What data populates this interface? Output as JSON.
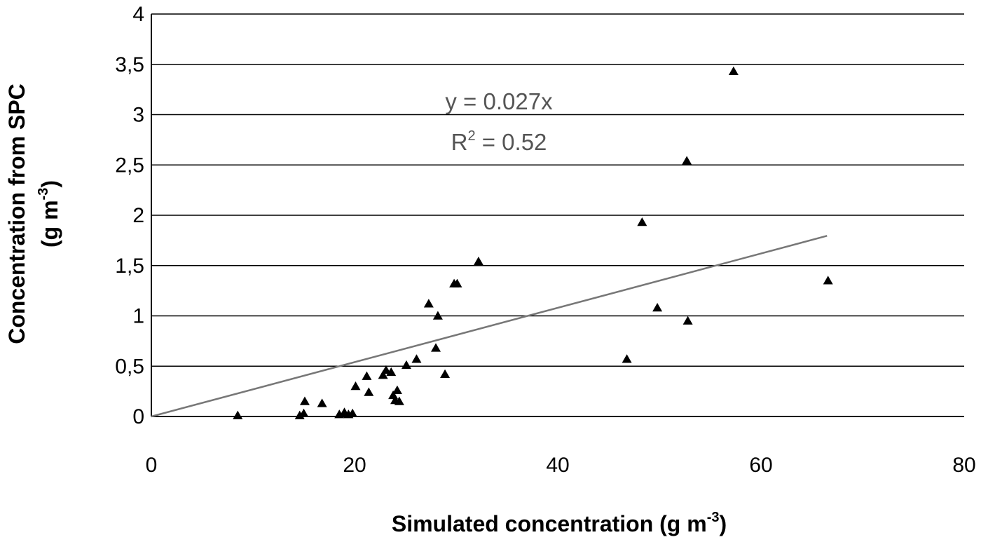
{
  "chart_data": {
    "type": "scatter",
    "x_axis": {
      "label_main": "Simulated concentration (g m",
      "label_exp": "-3",
      "label_close": ")",
      "range": [
        0,
        80
      ],
      "ticks": [
        "0",
        "20",
        "40",
        "60",
        "80"
      ]
    },
    "y_axis": {
      "label_line1": "Concentration from SPC",
      "label_line2_main": "(g m",
      "label_line2_exp": "-3",
      "label_line2_close": ")",
      "range": [
        0,
        4
      ],
      "ticks": [
        "0",
        "0,5",
        "1",
        "1,5",
        "2",
        "2,5",
        "3",
        "3,5",
        "4"
      ]
    },
    "grid": "horizontal",
    "trendline": {
      "slope": 0.027,
      "x_range": [
        0,
        66.5
      ],
      "equation": "y = 0.027x",
      "r2_label": "R",
      "r2_exp": "2",
      "r2_value": " = 0.52"
    },
    "points": [
      {
        "x": 8.5,
        "y": 0.01
      },
      {
        "x": 14.6,
        "y": 0.01
      },
      {
        "x": 15.0,
        "y": 0.03
      },
      {
        "x": 15.1,
        "y": 0.15
      },
      {
        "x": 16.8,
        "y": 0.13
      },
      {
        "x": 18.5,
        "y": 0.02
      },
      {
        "x": 19.0,
        "y": 0.04
      },
      {
        "x": 19.4,
        "y": 0.02
      },
      {
        "x": 19.8,
        "y": 0.03
      },
      {
        "x": 20.1,
        "y": 0.3
      },
      {
        "x": 21.2,
        "y": 0.4
      },
      {
        "x": 21.4,
        "y": 0.24
      },
      {
        "x": 22.8,
        "y": 0.41
      },
      {
        "x": 23.1,
        "y": 0.46
      },
      {
        "x": 23.6,
        "y": 0.44
      },
      {
        "x": 23.8,
        "y": 0.21
      },
      {
        "x": 24.0,
        "y": 0.16
      },
      {
        "x": 24.2,
        "y": 0.26
      },
      {
        "x": 24.4,
        "y": 0.15
      },
      {
        "x": 25.1,
        "y": 0.51
      },
      {
        "x": 26.1,
        "y": 0.57
      },
      {
        "x": 27.3,
        "y": 1.12
      },
      {
        "x": 28.0,
        "y": 0.68
      },
      {
        "x": 28.2,
        "y": 1.0
      },
      {
        "x": 28.9,
        "y": 0.42
      },
      {
        "x": 29.8,
        "y": 1.32
      },
      {
        "x": 30.1,
        "y": 1.32
      },
      {
        "x": 32.2,
        "y": 1.54
      },
      {
        "x": 46.8,
        "y": 0.57
      },
      {
        "x": 48.3,
        "y": 1.93
      },
      {
        "x": 49.8,
        "y": 1.08
      },
      {
        "x": 52.7,
        "y": 2.54
      },
      {
        "x": 52.8,
        "y": 0.95
      },
      {
        "x": 57.3,
        "y": 3.43
      },
      {
        "x": 66.6,
        "y": 1.35
      }
    ]
  }
}
